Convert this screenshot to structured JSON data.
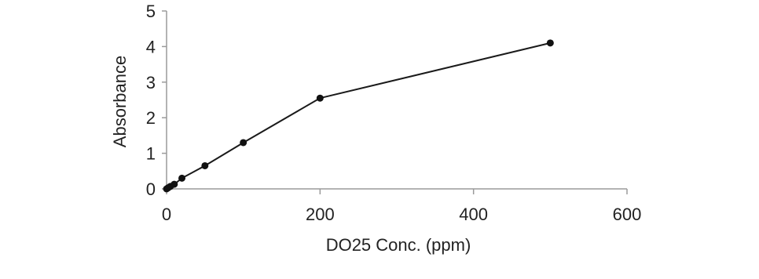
{
  "chart_data": {
    "type": "line",
    "xlabel": "DO25 Conc. (ppm)",
    "ylabel": "Absorbance",
    "xlim": [
      0,
      600
    ],
    "ylim": [
      0,
      5
    ],
    "x_ticks": [
      0,
      200,
      400,
      600
    ],
    "y_ticks": [
      0,
      1,
      2,
      3,
      4,
      5
    ],
    "x_tick_labels": [
      "0",
      "200",
      "400",
      "600"
    ],
    "y_tick_labels": [
      "0",
      "1",
      "2",
      "3",
      "4",
      "5"
    ],
    "grid": false,
    "legend": "none",
    "colors": {
      "line": "#1a1a1a",
      "marker": "#111111",
      "axis": "#9a9a9a",
      "text": "#222222"
    },
    "series": [
      {
        "x": [
          0,
          2,
          5,
          10,
          20,
          50,
          100,
          200,
          500
        ],
        "y": [
          0.0,
          0.03,
          0.07,
          0.13,
          0.3,
          0.65,
          1.3,
          2.55,
          4.1
        ]
      }
    ]
  }
}
